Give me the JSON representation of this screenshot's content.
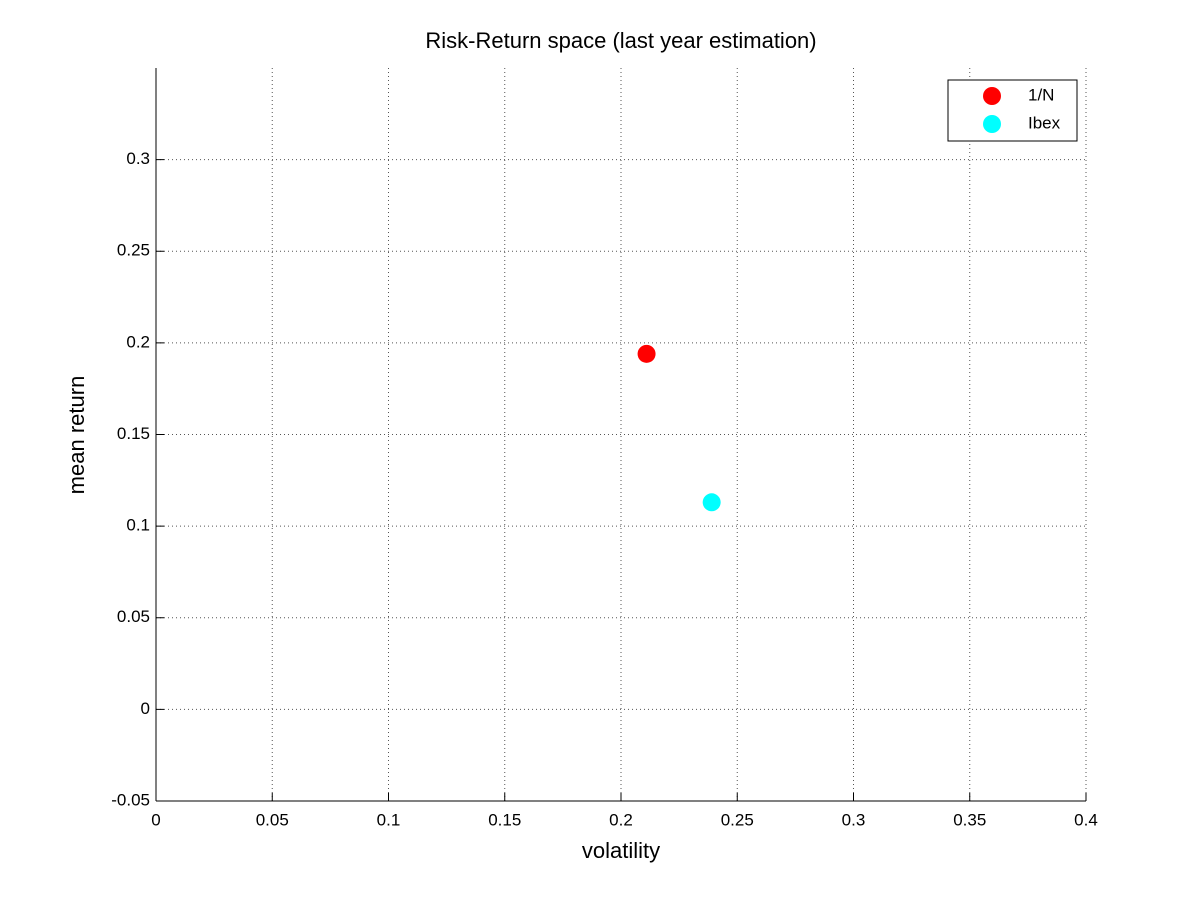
{
  "chart_data": {
    "type": "scatter",
    "title": "Risk-Return space (last year estimation)",
    "x_label": "volatility",
    "y_label": "mean return",
    "series": [
      {
        "name": "1/N",
        "color": "#ff0000",
        "x": [
          0.211
        ],
        "values": [
          0.194
        ]
      },
      {
        "name": "Ibex",
        "color": "#00ffff",
        "x": [
          0.239
        ],
        "values": [
          0.113
        ]
      }
    ],
    "xlim": [
      0,
      0.4
    ],
    "xticks": [
      0,
      0.05,
      0.1,
      0.15,
      0.2,
      0.25,
      0.3,
      0.35,
      0.4
    ],
    "ylim": [
      -0.05,
      0.35
    ],
    "yticks": [
      -0.05,
      0,
      0.05,
      0.1,
      0.15,
      0.2,
      0.25,
      0.3
    ],
    "grid": true,
    "legend": "top-right"
  }
}
